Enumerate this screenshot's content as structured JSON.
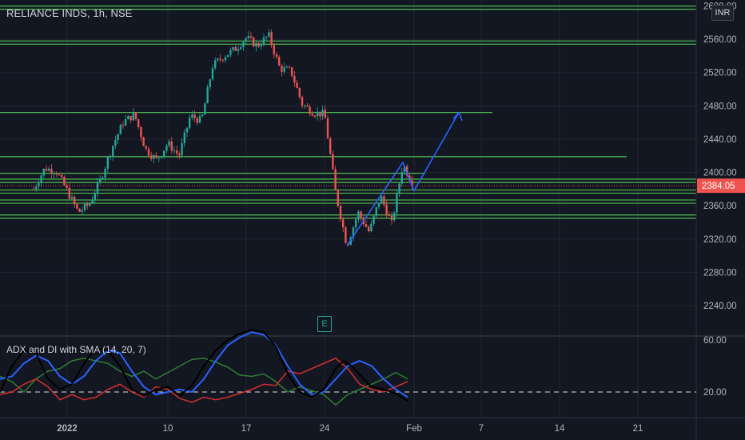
{
  "header": {
    "symbol": "RELIANCE INDS, 1h, NSE"
  },
  "currency": "INR",
  "indicator": {
    "title": "ADX and DI with SMA (14, 20, 7)"
  },
  "earnings_marker": "E",
  "colors": {
    "background": "#131722",
    "grid": "#1f2430",
    "level": "#4caf50",
    "up": "#26a69a",
    "down": "#ef5350",
    "projection": "#2962ff",
    "adx": "#000000",
    "sma": "#2962ff",
    "di_plus": "#2e7d32",
    "di_minus": "#d32f2f",
    "price_label_bg": "#ef5350"
  },
  "chart_data": [
    {
      "type": "candlestick",
      "title": "RELIANCE INDS, 1h, NSE",
      "yaxis": {
        "ticks": [
          2240,
          2280,
          2320,
          2360,
          2400,
          2440,
          2480,
          2520,
          2560,
          2600
        ],
        "range": [
          2210,
          2605
        ],
        "position": "right"
      },
      "xaxis": {
        "ticks": [
          "2022",
          "10",
          "17",
          "24",
          "Feb",
          "7",
          "14",
          "21"
        ]
      },
      "last_price": "2384.05",
      "horizontal_levels": [
        {
          "price": 2598,
          "double": true,
          "extent": "full"
        },
        {
          "price": 2556,
          "double": true,
          "extent": "full"
        },
        {
          "price": 2472,
          "extent": "to-8-feb"
        },
        {
          "price": 2419,
          "extent": "to-20-feb"
        },
        {
          "price": 2399,
          "extent": "to-2-feb"
        },
        {
          "price": 2390,
          "double": true,
          "extent": "full"
        },
        {
          "price": 2377,
          "double": true,
          "extent": "full"
        },
        {
          "price": 2365,
          "double": true,
          "extent": "full"
        },
        {
          "price": 2347,
          "double": true,
          "extent": "full"
        }
      ],
      "projection_path": [
        {
          "date": "Jan 26",
          "price": 2312
        },
        {
          "date": "Jan 31",
          "price": 2412
        },
        {
          "date": "Feb 1",
          "price": 2378
        },
        {
          "date": "Feb 5",
          "price": 2472
        }
      ],
      "price_path": [
        [
          "Dec 29",
          2380
        ],
        [
          "Dec 30",
          2405
        ],
        [
          "Dec 31",
          2402
        ],
        [
          "Jan 1",
          2378
        ],
        [
          "Jan 2",
          2352
        ],
        [
          "Jan 3",
          2362
        ],
        [
          "Jan 4",
          2392
        ],
        [
          "Jan 5",
          2430
        ],
        [
          "Jan 6",
          2460
        ],
        [
          "Jan 7",
          2470
        ],
        [
          "Jan 8",
          2428
        ],
        [
          "Jan 9",
          2415
        ],
        [
          "Jan 10",
          2435
        ],
        [
          "Jan 11",
          2420
        ],
        [
          "Jan 12",
          2468
        ],
        [
          "Jan 13",
          2462
        ],
        [
          "Jan 14",
          2528
        ],
        [
          "Jan 15",
          2540
        ],
        [
          "Jan 16",
          2548
        ],
        [
          "Jan 17",
          2562
        ],
        [
          "Jan 18",
          2552
        ],
        [
          "Jan 19",
          2565
        ],
        [
          "Jan 20",
          2525
        ],
        [
          "Jan 21",
          2522
        ],
        [
          "Jan 22",
          2482
        ],
        [
          "Jan 23",
          2472
        ],
        [
          "Jan 24",
          2470
        ],
        [
          "Jan 25",
          2375
        ],
        [
          "Jan 26",
          2312
        ],
        [
          "Jan 27",
          2352
        ],
        [
          "Jan 28",
          2328
        ],
        [
          "Jan 29",
          2372
        ],
        [
          "Jan 30",
          2338
        ],
        [
          "Jan 31",
          2410
        ],
        [
          "Feb 1",
          2384
        ]
      ]
    },
    {
      "type": "line",
      "title": "ADX and DI with SMA (14, 20, 7)",
      "yaxis": {
        "ticks": [
          20,
          60
        ],
        "range": [
          0,
          70
        ]
      },
      "reference_line": 20,
      "series": []
    }
  ],
  "adx_paths": {
    "adx": [
      [
        0,
        20
      ],
      [
        15,
        40
      ],
      [
        30,
        52
      ],
      [
        45,
        50
      ],
      [
        60,
        30
      ],
      [
        75,
        22
      ],
      [
        90,
        26
      ],
      [
        105,
        42
      ],
      [
        120,
        54
      ],
      [
        135,
        52
      ],
      [
        150,
        40
      ],
      [
        165,
        22
      ],
      [
        180,
        17
      ],
      [
        195,
        22
      ],
      [
        210,
        24
      ],
      [
        225,
        17
      ],
      [
        240,
        25
      ],
      [
        255,
        40
      ],
      [
        270,
        52
      ],
      [
        285,
        60
      ],
      [
        300,
        65
      ],
      [
        315,
        68
      ],
      [
        330,
        66
      ],
      [
        345,
        55
      ],
      [
        360,
        34
      ],
      [
        375,
        20
      ],
      [
        390,
        16
      ],
      [
        405,
        22
      ],
      [
        420,
        38
      ],
      [
        430,
        44
      ],
      [
        440,
        40
      ],
      [
        455,
        30
      ],
      [
        465,
        24
      ],
      [
        480,
        22
      ],
      [
        495,
        19
      ],
      [
        510,
        13
      ]
    ],
    "sma": [
      [
        0,
        30
      ],
      [
        15,
        32
      ],
      [
        30,
        42
      ],
      [
        45,
        48
      ],
      [
        60,
        44
      ],
      [
        75,
        32
      ],
      [
        90,
        26
      ],
      [
        105,
        32
      ],
      [
        120,
        44
      ],
      [
        135,
        52
      ],
      [
        150,
        50
      ],
      [
        165,
        36
      ],
      [
        180,
        24
      ],
      [
        195,
        18
      ],
      [
        210,
        20
      ],
      [
        225,
        22
      ],
      [
        240,
        20
      ],
      [
        255,
        30
      ],
      [
        270,
        44
      ],
      [
        285,
        56
      ],
      [
        300,
        62
      ],
      [
        315,
        66
      ],
      [
        330,
        64
      ],
      [
        345,
        56
      ],
      [
        360,
        40
      ],
      [
        375,
        26
      ],
      [
        390,
        18
      ],
      [
        405,
        20
      ],
      [
        420,
        30
      ],
      [
        435,
        40
      ],
      [
        450,
        44
      ],
      [
        465,
        40
      ],
      [
        480,
        30
      ],
      [
        495,
        22
      ],
      [
        510,
        16
      ]
    ],
    "di_plus": [
      [
        0,
        32
      ],
      [
        15,
        28
      ],
      [
        30,
        20
      ],
      [
        45,
        30
      ],
      [
        60,
        36
      ],
      [
        75,
        38
      ],
      [
        90,
        44
      ],
      [
        105,
        46
      ],
      [
        120,
        44
      ],
      [
        135,
        42
      ],
      [
        150,
        36
      ],
      [
        165,
        32
      ],
      [
        180,
        36
      ],
      [
        195,
        30
      ],
      [
        210,
        35
      ],
      [
        225,
        40
      ],
      [
        240,
        45
      ],
      [
        255,
        46
      ],
      [
        270,
        43
      ],
      [
        285,
        39
      ],
      [
        300,
        33
      ],
      [
        315,
        32
      ],
      [
        330,
        34
      ],
      [
        345,
        28
      ],
      [
        360,
        20
      ],
      [
        375,
        24
      ],
      [
        390,
        21
      ],
      [
        405,
        18
      ],
      [
        420,
        10
      ],
      [
        435,
        18
      ],
      [
        450,
        22
      ],
      [
        465,
        26
      ],
      [
        480,
        30
      ],
      [
        495,
        35
      ],
      [
        510,
        30
      ]
    ],
    "di_minus": [
      [
        0,
        18
      ],
      [
        15,
        20
      ],
      [
        30,
        26
      ],
      [
        45,
        30
      ],
      [
        60,
        24
      ],
      [
        75,
        14
      ],
      [
        90,
        18
      ],
      [
        105,
        14
      ],
      [
        120,
        16
      ],
      [
        135,
        22
      ],
      [
        150,
        26
      ],
      [
        165,
        20
      ],
      [
        180,
        16
      ],
      [
        195,
        24
      ],
      [
        210,
        22
      ],
      [
        225,
        15
      ],
      [
        240,
        12
      ],
      [
        255,
        16
      ],
      [
        270,
        14
      ],
      [
        285,
        16
      ],
      [
        300,
        19
      ],
      [
        315,
        22
      ],
      [
        330,
        26
      ],
      [
        345,
        25
      ],
      [
        360,
        36
      ],
      [
        375,
        34
      ],
      [
        390,
        38
      ],
      [
        405,
        42
      ],
      [
        420,
        46
      ],
      [
        435,
        38
      ],
      [
        450,
        26
      ],
      [
        465,
        22
      ],
      [
        480,
        20
      ],
      [
        495,
        24
      ],
      [
        510,
        28
      ]
    ]
  }
}
